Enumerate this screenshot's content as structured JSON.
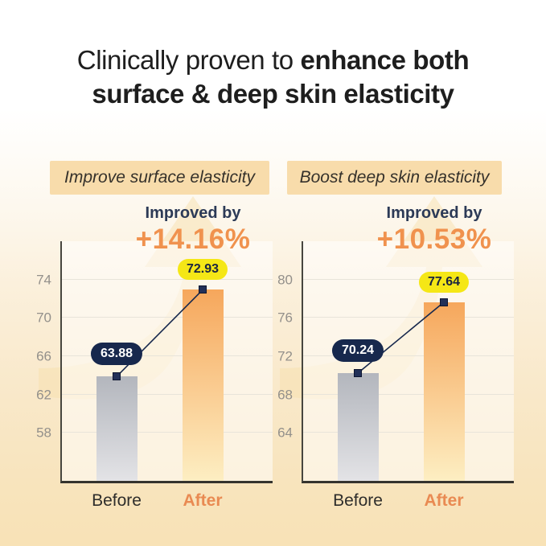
{
  "title": {
    "regular": "Clinically proven to ",
    "bold_part": "enhance both",
    "line2": "surface & deep skin elasticity"
  },
  "panels": [
    {
      "chip": "Improve surface elasticity",
      "improved_label": "Improved by",
      "improved_pct": "+14.16%"
    },
    {
      "chip": "Boost deep skin elasticity",
      "improved_label": "Improved by",
      "improved_pct": "+10.53%"
    }
  ],
  "chart_data": [
    {
      "type": "bar",
      "title": "Improve surface elasticity",
      "improvement": "+14.16%",
      "categories": [
        "Before",
        "After"
      ],
      "values": [
        63.88,
        72.93
      ],
      "data_labels": [
        "63.88",
        "72.93"
      ],
      "ylim": [
        53,
        78
      ],
      "yticks": [
        58,
        62,
        66,
        70,
        74
      ],
      "grid": true,
      "legend": "none",
      "bar_styles": [
        "gray-gradient",
        "orange-gradient"
      ]
    },
    {
      "type": "bar",
      "title": "Boost deep skin elasticity",
      "improvement": "+10.53%",
      "categories": [
        "Before",
        "After"
      ],
      "values": [
        70.24,
        77.64
      ],
      "data_labels": [
        "70.24",
        "77.64"
      ],
      "ylim": [
        59,
        84
      ],
      "yticks": [
        64,
        68,
        72,
        76,
        80
      ],
      "grid": true,
      "legend": "none",
      "bar_styles": [
        "gray-gradient",
        "orange-gradient"
      ]
    }
  ],
  "colors": {
    "accent_orange": "#f0924e",
    "after_label_orange": "#e98a52",
    "navy": "#17284d",
    "badge_yellow": "#f5e716",
    "chip_bg": "#f8dcab",
    "before_bar_top": "#b3b6bd",
    "before_bar_bottom": "#e3e3e6",
    "after_bar_top": "#f6a75c",
    "after_bar_bottom": "#fdeec2",
    "improved_text": "#2c3a56",
    "title_text": "#1e1e1e",
    "background_bottom": "#f8e2b6"
  }
}
